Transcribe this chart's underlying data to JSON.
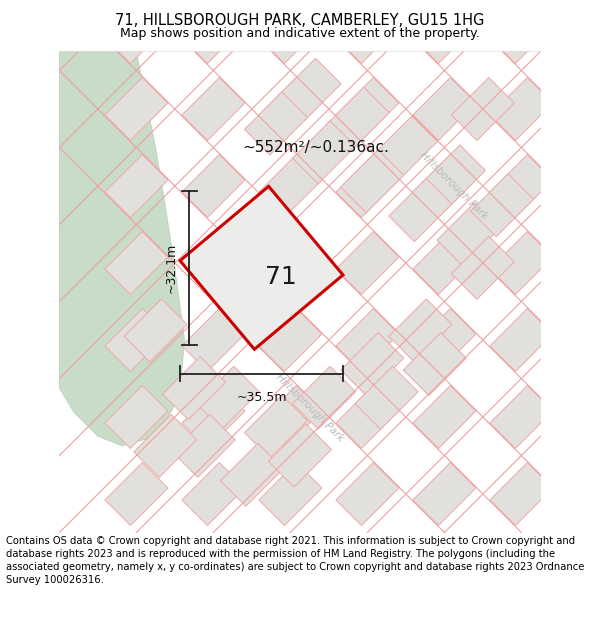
{
  "title": "71, HILLSBOROUGH PARK, CAMBERLEY, GU15 1HG",
  "subtitle": "Map shows position and indicative extent of the property.",
  "footer": "Contains OS data © Crown copyright and database right 2021. This information is subject to Crown copyright and database rights 2023 and is reproduced with the permission of HM Land Registry. The polygons (including the associated geometry, namely x, y co-ordinates) are subject to Crown copyright and database rights 2023 Ordnance Survey 100026316.",
  "area_label": "~552m²/~0.136ac.",
  "property_number": "71",
  "dim_width": "~35.5m",
  "dim_height": "~32.1m",
  "road_label": "Hillsborough Park",
  "map_bg": "#f2f0ee",
  "green_color": "#c8dcc8",
  "green_edge": "#b8ceb8",
  "parcel_fill": "#e2e0dc",
  "parcel_edge": "#f0a8a8",
  "prop_fill": "#ececea",
  "prop_edge": "#cc0000",
  "road_color": "#f0a0a0",
  "dim_color": "#222222",
  "road_label_color": "#bbbbbb",
  "title_fontsize": 10.5,
  "subtitle_fontsize": 9,
  "footer_fontsize": 7.2,
  "area_fontsize": 11,
  "prop_num_fontsize": 18,
  "dim_fontsize": 9
}
